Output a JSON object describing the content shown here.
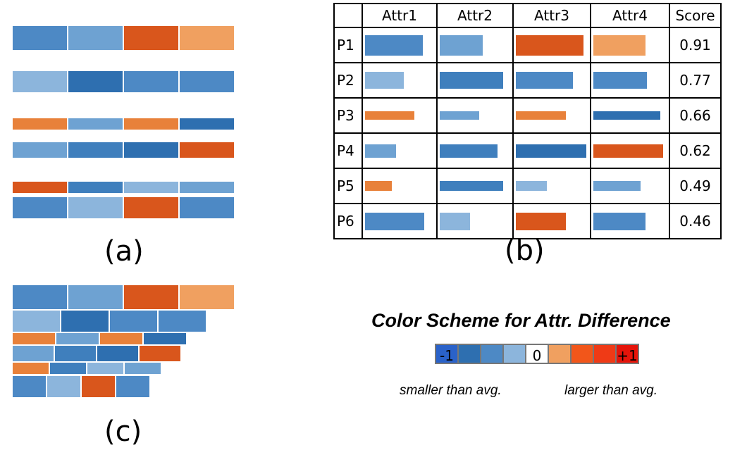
{
  "colors": {
    "blue_dark": "#2e6fb0",
    "blue_mid": "#3f7fbd",
    "blue": "#4d89c5",
    "blue_light": "#6ea2d2",
    "blue_pale": "#8cb5dc",
    "orange_light": "#f0a060",
    "orange": "#e8813a",
    "orange_dark": "#d9561c",
    "red": "#e52a0a",
    "blue_extreme": "#2a62c9"
  },
  "panel_a": {
    "label": "(a)",
    "rows": [
      [
        "blue",
        "blue_light",
        "orange_dark",
        "orange_light"
      ],
      [
        "blue_pale",
        "blue_dark",
        "blue",
        "blue"
      ],
      [
        "orange",
        "blue_light",
        "orange",
        "blue_dark"
      ],
      [
        "blue_light",
        "blue_mid",
        "blue_dark",
        "orange_dark"
      ],
      [
        "orange_dark",
        "blue_mid",
        "blue_pale",
        "blue_light"
      ],
      [
        "blue",
        "blue_pale",
        "orange_dark",
        "blue"
      ]
    ]
  },
  "panel_b": {
    "label": "(b)",
    "headers": [
      "",
      "Attr1",
      "Attr2",
      "Attr3",
      "Attr4",
      "Score"
    ],
    "rows": [
      {
        "id": "P1",
        "score": "0.91",
        "bars": [
          {
            "len": 0.82,
            "thick": 0.72,
            "color": "blue"
          },
          {
            "len": 0.6,
            "thick": 0.72,
            "color": "blue_light"
          },
          {
            "len": 0.92,
            "thick": 0.72,
            "color": "orange_dark"
          },
          {
            "len": 0.7,
            "thick": 0.72,
            "color": "orange_light"
          }
        ]
      },
      {
        "id": "P2",
        "score": "0.77",
        "bars": [
          {
            "len": 0.55,
            "thick": 0.6,
            "color": "blue_pale"
          },
          {
            "len": 0.88,
            "thick": 0.6,
            "color": "blue_mid"
          },
          {
            "len": 0.78,
            "thick": 0.6,
            "color": "blue"
          },
          {
            "len": 0.72,
            "thick": 0.6,
            "color": "blue"
          }
        ]
      },
      {
        "id": "P3",
        "score": "0.66",
        "bars": [
          {
            "len": 0.7,
            "thick": 0.3,
            "color": "orange"
          },
          {
            "len": 0.55,
            "thick": 0.3,
            "color": "blue_light"
          },
          {
            "len": 0.68,
            "thick": 0.3,
            "color": "orange"
          },
          {
            "len": 0.9,
            "thick": 0.3,
            "color": "blue_dark"
          }
        ]
      },
      {
        "id": "P4",
        "score": "0.62",
        "bars": [
          {
            "len": 0.44,
            "thick": 0.48,
            "color": "blue_light"
          },
          {
            "len": 0.8,
            "thick": 0.48,
            "color": "blue_mid"
          },
          {
            "len": 0.96,
            "thick": 0.48,
            "color": "blue_dark"
          },
          {
            "len": 0.93,
            "thick": 0.48,
            "color": "orange_dark"
          }
        ]
      },
      {
        "id": "P5",
        "score": "0.49",
        "bars": [
          {
            "len": 0.38,
            "thick": 0.36,
            "color": "orange"
          },
          {
            "len": 0.88,
            "thick": 0.36,
            "color": "blue_mid"
          },
          {
            "len": 0.42,
            "thick": 0.36,
            "color": "blue_pale"
          },
          {
            "len": 0.63,
            "thick": 0.36,
            "color": "blue_light"
          }
        ]
      },
      {
        "id": "P6",
        "score": "0.46",
        "bars": [
          {
            "len": 0.84,
            "thick": 0.62,
            "color": "blue"
          },
          {
            "len": 0.42,
            "thick": 0.62,
            "color": "blue_pale"
          },
          {
            "len": 0.68,
            "thick": 0.62,
            "color": "orange_dark"
          },
          {
            "len": 0.7,
            "thick": 0.62,
            "color": "blue"
          }
        ]
      }
    ]
  },
  "panel_c": {
    "label": "(c)",
    "rows": [
      [
        "blue",
        "blue_light",
        "orange_dark",
        "orange_light"
      ],
      [
        "blue_pale",
        "blue_dark",
        "blue",
        "blue"
      ],
      [
        "orange",
        "blue_light",
        "orange",
        "blue_dark"
      ],
      [
        "blue_light",
        "blue_mid",
        "blue_dark",
        "orange_dark"
      ],
      [
        "orange",
        "blue_mid",
        "blue_pale",
        "blue_light"
      ],
      [
        "blue",
        "blue_pale",
        "orange_dark",
        "blue"
      ]
    ]
  },
  "legend": {
    "title": "Color Scheme for Attr. Difference",
    "swatches": [
      {
        "color": "#2a62c9",
        "text": "-1"
      },
      {
        "color": "#2e6fb0",
        "text": ""
      },
      {
        "color": "#4d89c5",
        "text": ""
      },
      {
        "color": "#8cb5dc",
        "text": ""
      },
      {
        "color": "#ffffff",
        "text": "0"
      },
      {
        "color": "#f0a060",
        "text": ""
      },
      {
        "color": "#f2561a",
        "text": ""
      },
      {
        "color": "#ef3a16",
        "text": ""
      },
      {
        "color": "#e5140a",
        "text": "+1"
      }
    ],
    "smaller": "smaller than avg.",
    "larger": "larger than avg."
  }
}
